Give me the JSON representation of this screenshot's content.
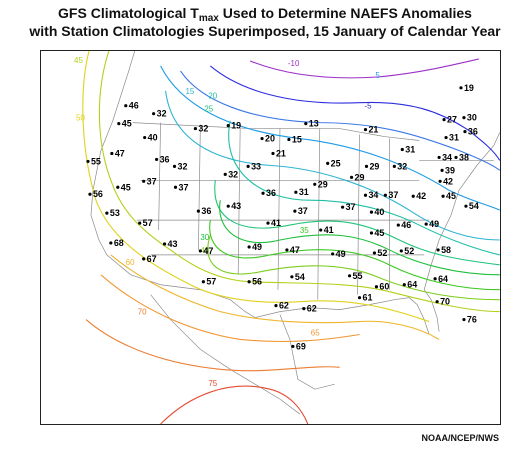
{
  "title": {
    "line1_pre": "GFS Climatological T",
    "line1_sub": "max",
    "line1_post": " Used to Determine NAEFS Anomalies",
    "line2": "with Station Climatologies Superimposed, 15 January of Calendar Year"
  },
  "credit": "NOAA/NCEP/NWS",
  "contour_colors": {
    "-10": "#9b30c8",
    "-5": "#2d2de0",
    "0": "#3a78e6",
    "5": "#1e9be6",
    "15": "#2fb4d2",
    "20": "#1fbfa5",
    "25": "#21c47a",
    "30": "#1ebf3c",
    "35": "#3cc81e",
    "40": "#7ccd1e",
    "45": "#b0d21a",
    "50": "#e0d21a",
    "60": "#f0b428",
    "65": "#f09632",
    "70": "#eb7d32",
    "75": "#e64b32"
  },
  "contour_labels": [
    "-10",
    "-5",
    "5",
    "15",
    "20",
    "25",
    "30",
    "35",
    "40",
    "45",
    "50",
    "60",
    "65",
    "70",
    "75"
  ],
  "stations": [
    "19",
    "27",
    "30",
    "31",
    "36",
    "34",
    "38",
    "39",
    "42",
    "45",
    "54",
    "46",
    "45",
    "32",
    "40",
    "32",
    "19",
    "20",
    "15",
    "13",
    "21",
    "31",
    "21",
    "25",
    "29",
    "32",
    "36",
    "32",
    "33",
    "47",
    "55",
    "45",
    "56",
    "37",
    "37",
    "32",
    "36",
    "31",
    "29",
    "29",
    "34",
    "37",
    "42",
    "53",
    "36",
    "43",
    "37",
    "37",
    "40",
    "57",
    "41",
    "41",
    "45",
    "46",
    "49",
    "68",
    "43",
    "47",
    "49",
    "47",
    "49",
    "52",
    "52",
    "58",
    "67",
    "57",
    "56",
    "54",
    "55",
    "60",
    "64",
    "64",
    "61",
    "62",
    "62",
    "70",
    "76",
    "69"
  ]
}
